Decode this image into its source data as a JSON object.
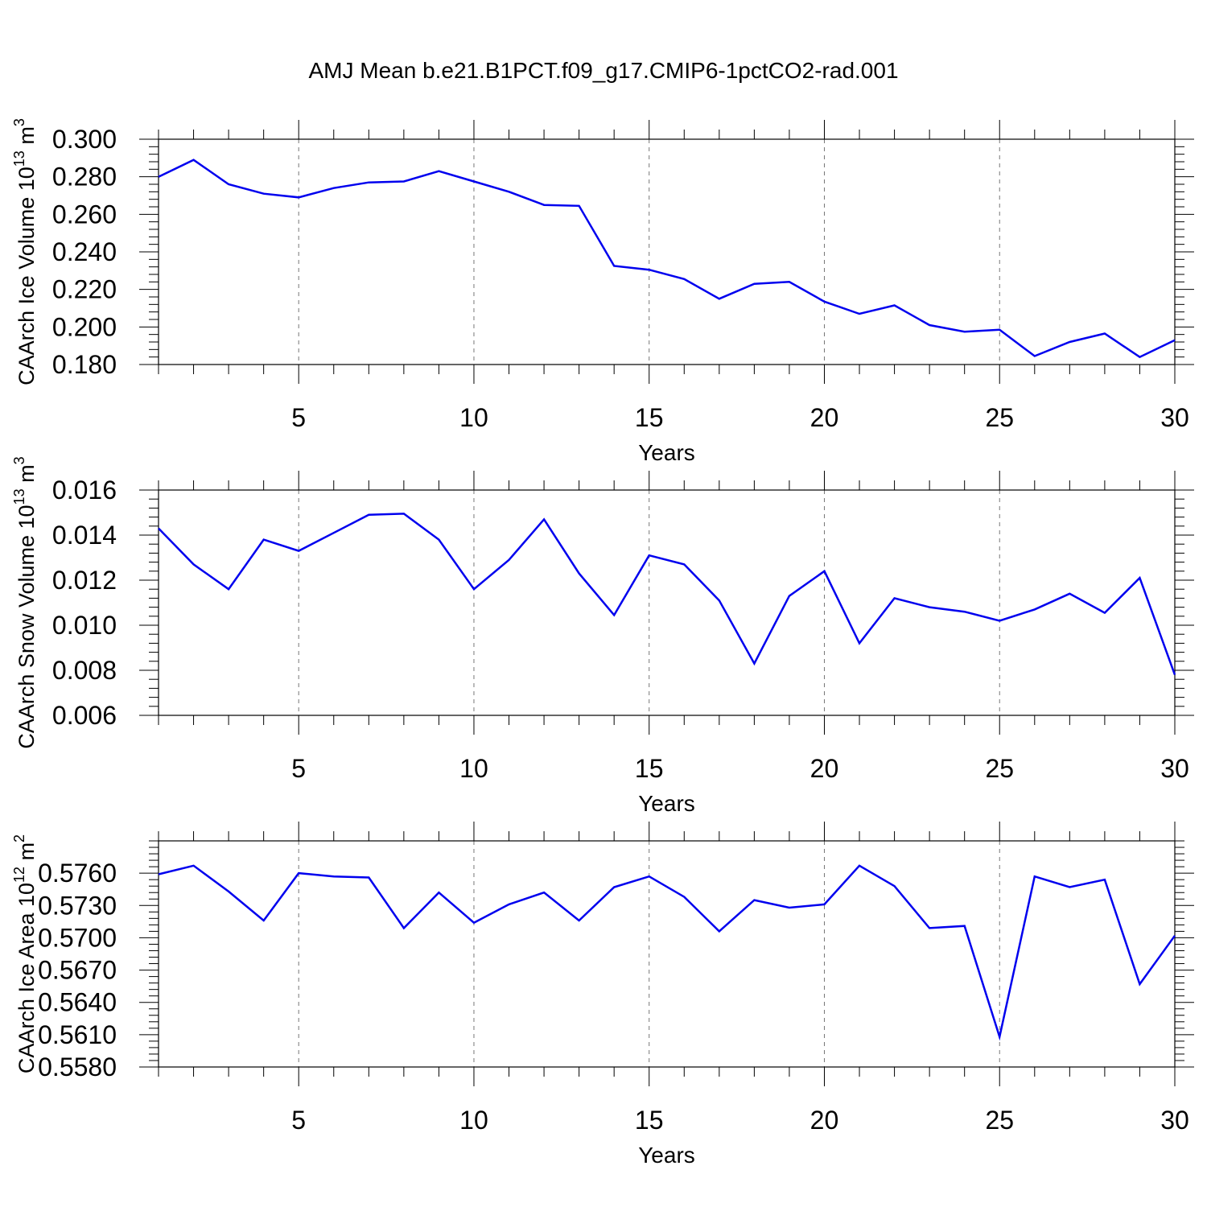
{
  "title": "AMJ Mean b.e21.B1PCT.f09_g17.CMIP6-1pctCO2-rad.001",
  "colors": {
    "line": "#0000ee",
    "axis": "#000000",
    "grid": "#777777"
  },
  "chart_data": [
    {
      "type": "line",
      "ylabel_main": "CAArch Ice Volume 10",
      "ylabel_exp": "13",
      "ylabel_unit": " m",
      "ylabel_unit_exp": "3",
      "xlabel": "Years",
      "xlim": [
        1,
        30
      ],
      "ylim": [
        0.18,
        0.3
      ],
      "yticks": [
        "0.180",
        "0.200",
        "0.220",
        "0.240",
        "0.260",
        "0.280",
        "0.300"
      ],
      "ytick_values": [
        0.18,
        0.2,
        0.22,
        0.24,
        0.26,
        0.28,
        0.3
      ],
      "xticks": [
        "5",
        "10",
        "15",
        "20",
        "25",
        "30"
      ],
      "xtick_values": [
        5,
        10,
        15,
        20,
        25,
        30
      ],
      "x": [
        1,
        2,
        3,
        4,
        5,
        6,
        7,
        8,
        9,
        10,
        11,
        12,
        13,
        14,
        15,
        16,
        17,
        18,
        19,
        20,
        21,
        22,
        23,
        24,
        25,
        26,
        27,
        28,
        29,
        30
      ],
      "values": [
        0.28,
        0.289,
        0.276,
        0.271,
        0.269,
        0.274,
        0.277,
        0.2775,
        0.283,
        0.2775,
        0.272,
        0.265,
        0.2645,
        0.2325,
        0.2305,
        0.2255,
        0.215,
        0.223,
        0.224,
        0.2135,
        0.207,
        0.2115,
        0.201,
        0.1975,
        0.1985,
        0.1845,
        0.192,
        0.1965,
        0.184,
        0.193
      ]
    },
    {
      "type": "line",
      "ylabel_main": "CAArch Snow Volume 10",
      "ylabel_exp": "13",
      "ylabel_unit": " m",
      "ylabel_unit_exp": "3",
      "xlabel": "Years",
      "xlim": [
        1,
        30
      ],
      "ylim": [
        0.006,
        0.016
      ],
      "yticks": [
        "0.006",
        "0.008",
        "0.010",
        "0.012",
        "0.014",
        "0.016"
      ],
      "ytick_values": [
        0.006,
        0.008,
        0.01,
        0.012,
        0.014,
        0.016
      ],
      "xticks": [
        "5",
        "10",
        "15",
        "20",
        "25",
        "30"
      ],
      "xtick_values": [
        5,
        10,
        15,
        20,
        25,
        30
      ],
      "x": [
        1,
        2,
        3,
        4,
        5,
        6,
        7,
        8,
        9,
        10,
        11,
        12,
        13,
        14,
        15,
        16,
        17,
        18,
        19,
        20,
        21,
        22,
        23,
        24,
        25,
        26,
        27,
        28,
        29,
        30
      ],
      "values": [
        0.0143,
        0.0127,
        0.0116,
        0.0138,
        0.0133,
        0.0141,
        0.0149,
        0.01495,
        0.0138,
        0.0116,
        0.0129,
        0.0147,
        0.0123,
        0.01045,
        0.0131,
        0.0127,
        0.0111,
        0.0083,
        0.0113,
        0.0124,
        0.0092,
        0.0112,
        0.0108,
        0.0106,
        0.0102,
        0.0107,
        0.0114,
        0.01055,
        0.0121,
        0.0078
      ]
    },
    {
      "type": "line",
      "ylabel_main": "CAArch Ice Area 10",
      "ylabel_exp": "12",
      "ylabel_unit": " m",
      "ylabel_unit_exp": "2",
      "xlabel": "Years",
      "xlim": [
        1,
        30
      ],
      "ylim": [
        0.558,
        0.579
      ],
      "yticks": [
        "0.5580",
        "0.5610",
        "0.5640",
        "0.5670",
        "0.5700",
        "0.5730",
        "0.5760"
      ],
      "ytick_values": [
        0.558,
        0.561,
        0.564,
        0.567,
        0.57,
        0.573,
        0.576
      ],
      "xticks": [
        "5",
        "10",
        "15",
        "20",
        "25",
        "30"
      ],
      "xtick_values": [
        5,
        10,
        15,
        20,
        25,
        30
      ],
      "x": [
        1,
        2,
        3,
        4,
        5,
        6,
        7,
        8,
        9,
        10,
        11,
        12,
        13,
        14,
        15,
        16,
        17,
        18,
        19,
        20,
        21,
        22,
        23,
        24,
        25,
        26,
        27,
        28,
        29,
        30
      ],
      "values": [
        0.5759,
        0.5767,
        0.5743,
        0.5716,
        0.576,
        0.5757,
        0.5756,
        0.5709,
        0.5742,
        0.5714,
        0.5731,
        0.5742,
        0.5716,
        0.5747,
        0.5757,
        0.5738,
        0.5706,
        0.5735,
        0.5728,
        0.5731,
        0.5767,
        0.5748,
        0.5709,
        0.5711,
        0.5608,
        0.5757,
        0.5747,
        0.5754,
        0.5657,
        0.5702
      ]
    }
  ]
}
